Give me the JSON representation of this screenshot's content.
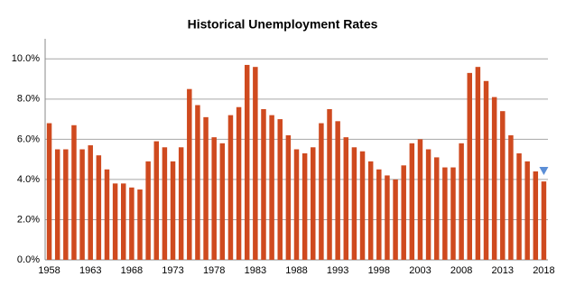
{
  "chart_data": {
    "type": "bar",
    "title": "Historical Unemployment Rates",
    "categories": [
      "1958",
      null,
      null,
      null,
      null,
      "1963",
      null,
      null,
      null,
      null,
      "1968",
      null,
      null,
      null,
      null,
      "1973",
      null,
      null,
      null,
      null,
      "1978",
      null,
      null,
      null,
      null,
      "1983",
      null,
      null,
      null,
      null,
      "1988",
      null,
      null,
      null,
      null,
      "1993",
      null,
      null,
      null,
      null,
      "1998",
      null,
      null,
      null,
      null,
      "2003",
      null,
      null,
      null,
      null,
      "2008",
      null,
      null,
      null,
      null,
      "2013",
      null,
      null,
      null,
      null,
      "2018"
    ],
    "values": [
      6.8,
      5.5,
      5.5,
      6.7,
      5.5,
      5.7,
      5.2,
      4.5,
      3.8,
      3.8,
      3.6,
      3.5,
      4.9,
      5.9,
      5.6,
      4.9,
      5.6,
      8.5,
      7.7,
      7.1,
      6.1,
      5.8,
      7.2,
      7.6,
      9.7,
      9.6,
      7.5,
      7.2,
      7.0,
      6.2,
      5.5,
      5.3,
      5.6,
      6.8,
      7.5,
      6.9,
      6.1,
      5.6,
      5.4,
      4.9,
      4.5,
      4.2,
      4.0,
      4.7,
      5.8,
      6.0,
      5.5,
      5.1,
      4.6,
      4.6,
      5.8,
      9.3,
      9.6,
      8.9,
      8.1,
      7.4,
      6.2,
      5.3,
      4.9,
      4.4,
      3.9
    ],
    "color": "#cf4a1f",
    "marker": {
      "value": 4.4,
      "color": "#5b8ed6"
    },
    "ylim": [
      0,
      11
    ],
    "yticks": [
      {
        "value": 0,
        "label": "0.0%"
      },
      {
        "value": 2,
        "label": "2.0%"
      },
      {
        "value": 4,
        "label": "4.0%"
      },
      {
        "value": 6,
        "label": "6.0%"
      },
      {
        "value": 8,
        "label": "8.0%"
      },
      {
        "value": 10,
        "label": "10.0%"
      }
    ],
    "grid": true
  }
}
